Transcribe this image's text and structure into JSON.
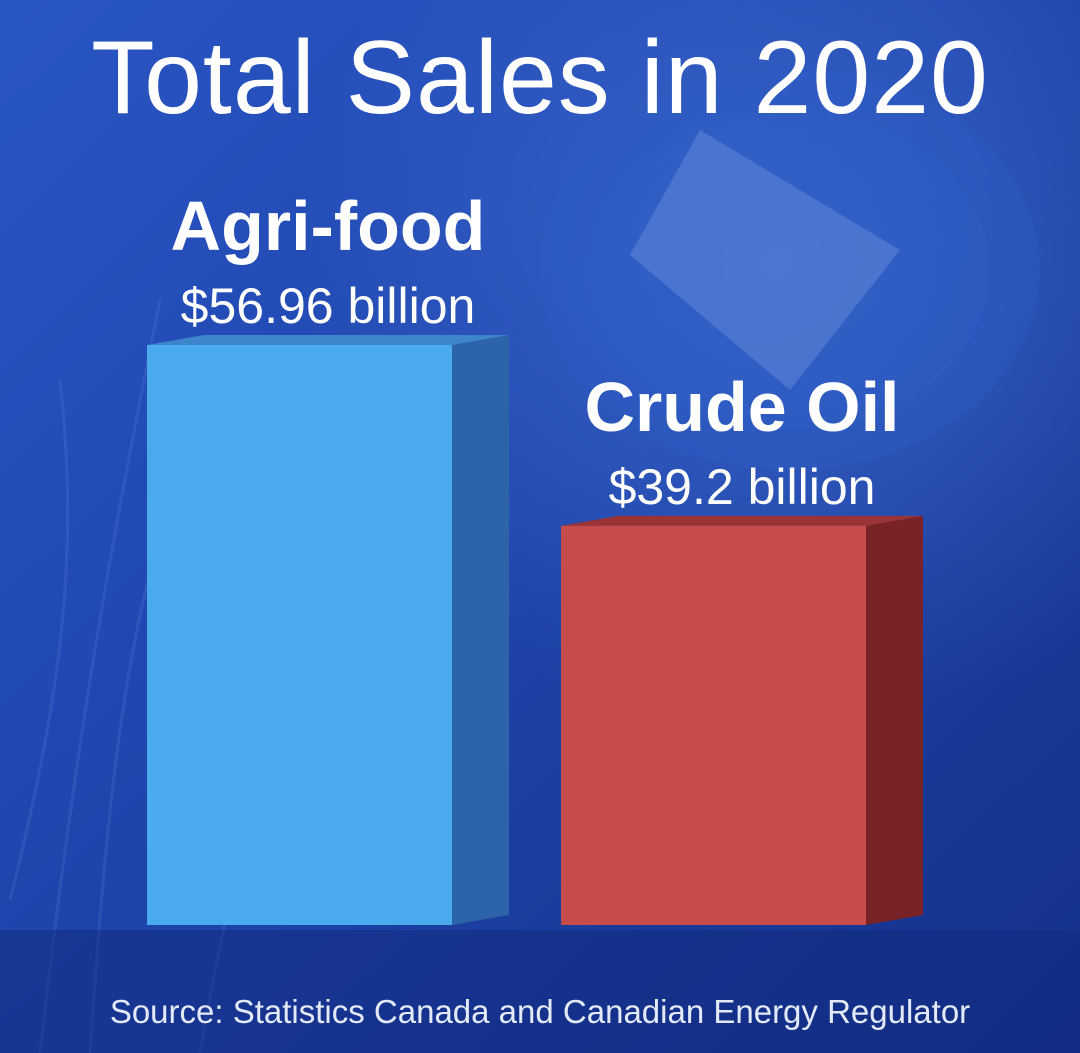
{
  "chart_data": {
    "type": "bar",
    "title": "Total Sales in 2020",
    "categories": [
      "Agri-food",
      "Crude Oil"
    ],
    "values": [
      56.96,
      39.2
    ],
    "value_labels": [
      "$56.96 billion",
      "$39.2 billion"
    ],
    "unit": "billion",
    "colors": [
      "#4aaaee",
      "#c64b4b"
    ],
    "side_colors": [
      "#2d63a8",
      "#7a2326"
    ],
    "top_colors": [
      "#3e86cc",
      "#9b3437"
    ],
    "xlabel": "",
    "ylabel": "",
    "ylim": [
      0,
      56.96
    ],
    "grid": false,
    "legend": "none"
  },
  "footer": {
    "source": "Source: Statistics Canada and Canadian Energy Regulator"
  }
}
